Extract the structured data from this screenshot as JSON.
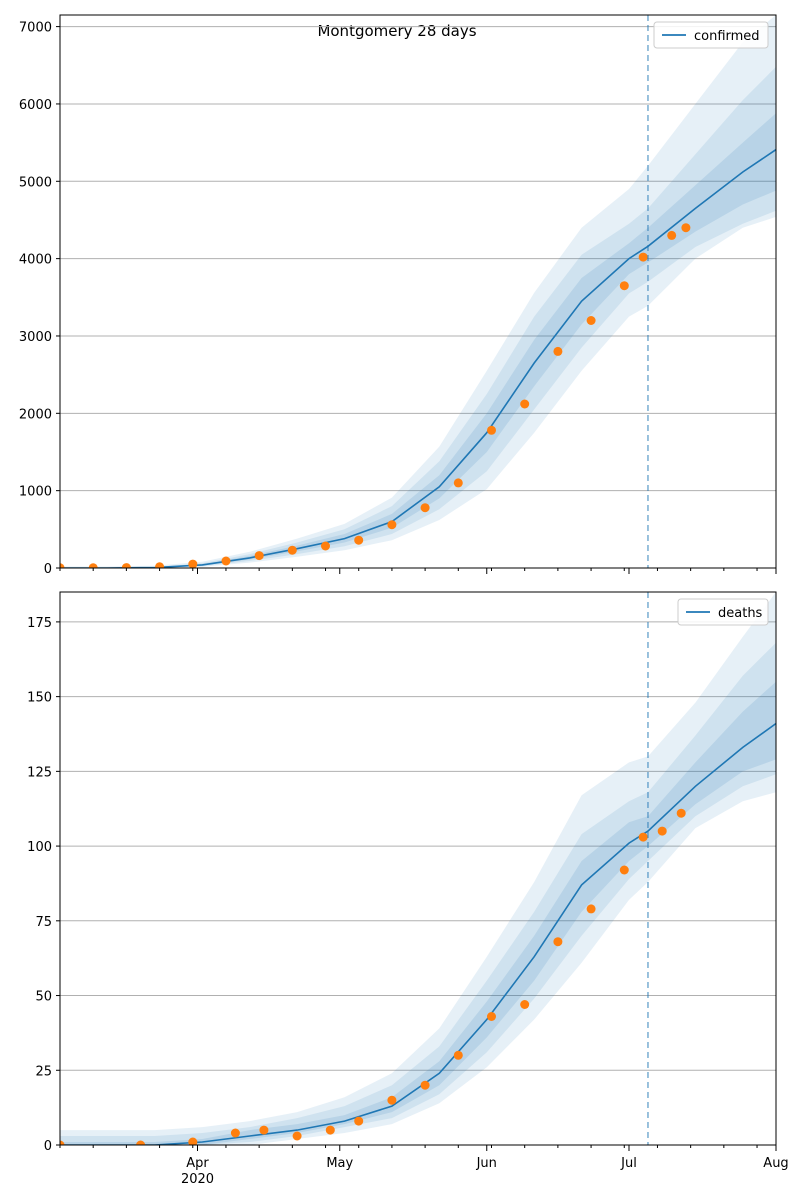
{
  "figure": {
    "title": "Montgomery 28 days"
  },
  "colors": {
    "line": "#1f77b4",
    "band": "#1f77b4",
    "points": "#ff7f0e",
    "grid": "#b0b0b0",
    "vline": "#1f77b4"
  },
  "chart_data": [
    {
      "type": "line",
      "name": "confirmed-panel",
      "legend": {
        "label": "confirmed",
        "location": "top-right"
      },
      "grid": "horizontal",
      "xlim": [
        "2020-03-03",
        "2020-08-01"
      ],
      "ylim": [
        0,
        7150
      ],
      "yticks": [
        0,
        1000,
        2000,
        3000,
        4000,
        5000,
        6000,
        7000
      ],
      "xticklabels": [
        "",
        "",
        "",
        "",
        "",
        ""
      ],
      "forecast_start": "2020-07-05",
      "model": {
        "x": [
          "2020-03-03",
          "2020-03-13",
          "2020-03-23",
          "2020-04-02",
          "2020-04-12",
          "2020-04-22",
          "2020-05-02",
          "2020-05-12",
          "2020-05-22",
          "2020-06-01",
          "2020-06-11",
          "2020-06-21",
          "2020-07-01",
          "2020-07-05",
          "2020-07-15",
          "2020-07-25",
          "2020-08-01"
        ],
        "median": [
          0,
          0,
          5,
          40,
          130,
          250,
          380,
          600,
          1050,
          1750,
          2650,
          3450,
          4000,
          4160,
          4650,
          5120,
          5410
        ],
        "band_inner": {
          "low": [
            0,
            0,
            3,
            32,
            110,
            215,
            330,
            520,
            900,
            1500,
            2350,
            3150,
            3800,
            3950,
            4350,
            4700,
            4880
          ],
          "high": [
            0,
            0,
            8,
            50,
            155,
            290,
            440,
            700,
            1200,
            2000,
            2950,
            3750,
            4200,
            4400,
            4950,
            5500,
            5880
          ]
        },
        "band_mid": {
          "low": [
            0,
            0,
            2,
            25,
            90,
            180,
            280,
            440,
            760,
            1250,
            2050,
            2850,
            3550,
            3700,
            4150,
            4450,
            4620
          ],
          "high": [
            0,
            0,
            12,
            62,
            180,
            330,
            500,
            800,
            1380,
            2250,
            3250,
            4050,
            4450,
            4650,
            5350,
            6050,
            6480
          ]
        },
        "band_outer": {
          "low": [
            0,
            0,
            0,
            15,
            70,
            145,
            230,
            360,
            620,
            1020,
            1750,
            2550,
            3250,
            3390,
            4000,
            4400,
            4540
          ],
          "high": [
            20,
            20,
            30,
            80,
            210,
            380,
            570,
            910,
            1570,
            2550,
            3560,
            4400,
            4900,
            5200,
            6000,
            6800,
            7150
          ]
        }
      },
      "observed": {
        "x": [
          "2020-03-03",
          "2020-03-10",
          "2020-03-17",
          "2020-03-24",
          "2020-03-31",
          "2020-04-07",
          "2020-04-14",
          "2020-04-21",
          "2020-04-28",
          "2020-05-05",
          "2020-05-12",
          "2020-05-19",
          "2020-05-26",
          "2020-06-02",
          "2020-06-09",
          "2020-06-16",
          "2020-06-23",
          "2020-06-30",
          "2020-07-04",
          "2020-07-10",
          "2020-07-13"
        ],
        "y": [
          2,
          2,
          5,
          15,
          50,
          90,
          160,
          230,
          285,
          360,
          560,
          780,
          1100,
          1780,
          2120,
          2800,
          3200,
          3650,
          4020,
          4300,
          4400
        ]
      }
    },
    {
      "type": "line",
      "name": "deaths-panel",
      "legend": {
        "label": "deaths",
        "location": "top-right"
      },
      "grid": "horizontal",
      "xlim": [
        "2020-03-03",
        "2020-08-01"
      ],
      "ylim": [
        0,
        185
      ],
      "yticks": [
        0,
        25,
        50,
        75,
        100,
        125,
        150,
        175
      ],
      "xticklabels": [
        "Apr\n2020",
        "May",
        "Jun",
        "Jul",
        "Aug"
      ],
      "xticks": [
        "2020-04-01",
        "2020-05-01",
        "2020-06-01",
        "2020-07-01",
        "2020-08-01"
      ],
      "forecast_start": "2020-07-05",
      "model": {
        "x": [
          "2020-03-03",
          "2020-03-13",
          "2020-03-23",
          "2020-04-02",
          "2020-04-12",
          "2020-04-22",
          "2020-05-02",
          "2020-05-12",
          "2020-05-22",
          "2020-06-01",
          "2020-06-11",
          "2020-06-21",
          "2020-07-01",
          "2020-07-05",
          "2020-07-15",
          "2020-07-25",
          "2020-08-01"
        ],
        "median": [
          0,
          0,
          0,
          1,
          3,
          5,
          8,
          13,
          24,
          42,
          63,
          87,
          101,
          105,
          120,
          133,
          141
        ],
        "band_inner": {
          "low": [
            0,
            0,
            0,
            0,
            2,
            4,
            7,
            11,
            20,
            36,
            55,
            78,
            95,
            100,
            114,
            125,
            129
          ],
          "high": [
            1,
            1,
            1,
            2,
            5,
            7,
            10,
            16,
            28,
            48,
            70,
            95,
            108,
            110,
            128,
            145,
            155
          ]
        },
        "band_mid": {
          "low": [
            0,
            0,
            0,
            0,
            1,
            3,
            6,
            9,
            17,
            31,
            49,
            70,
            89,
            95,
            110,
            120,
            124
          ],
          "high": [
            3,
            3,
            3,
            4,
            6,
            9,
            13,
            20,
            33,
            55,
            78,
            104,
            115,
            118,
            137,
            157,
            168
          ]
        },
        "band_outer": {
          "low": [
            0,
            0,
            0,
            0,
            0,
            2,
            4,
            7,
            14,
            26,
            42,
            61,
            82,
            88,
            106,
            115,
            118
          ],
          "high": [
            5,
            5,
            5,
            6,
            8,
            11,
            16,
            24,
            39,
            63,
            88,
            117,
            128,
            130,
            148,
            170,
            185
          ]
        }
      },
      "observed": {
        "x": [
          "2020-03-03",
          "2020-03-20",
          "2020-03-31",
          "2020-04-09",
          "2020-04-15",
          "2020-04-22",
          "2020-04-29",
          "2020-05-05",
          "2020-05-12",
          "2020-05-19",
          "2020-05-26",
          "2020-06-02",
          "2020-06-09",
          "2020-06-16",
          "2020-06-23",
          "2020-06-30",
          "2020-07-04",
          "2020-07-08",
          "2020-07-12"
        ],
        "y": [
          0,
          0,
          1,
          4,
          5,
          3,
          5,
          8,
          15,
          20,
          30,
          43,
          47,
          68,
          79,
          92,
          103,
          105,
          111
        ]
      }
    }
  ]
}
